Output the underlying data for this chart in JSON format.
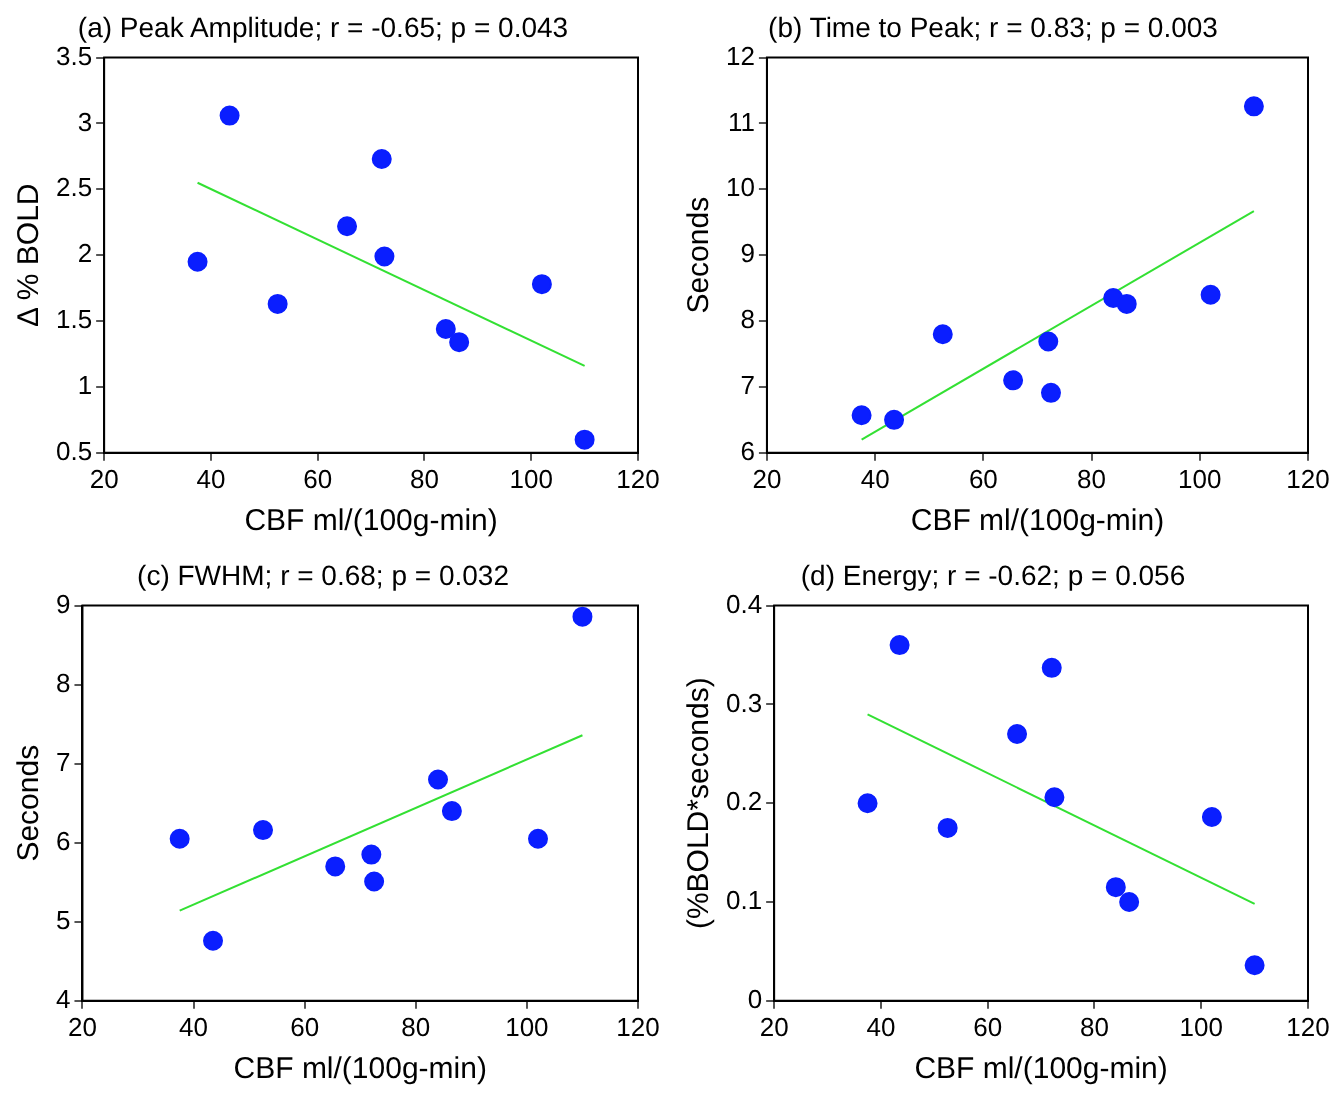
{
  "chart_data": [
    {
      "type": "scatter",
      "title": "(a) Peak Amplitude; r = -0.65; p = 0.043",
      "xlabel": "CBF ml/(100g-min)",
      "ylabel": "Δ % BOLD",
      "marker": "circle",
      "grid": false,
      "legend": false,
      "xlim": [
        20,
        120
      ],
      "xticks": [
        20,
        40,
        60,
        80,
        100,
        120
      ],
      "ylim": [
        0.5,
        3.5
      ],
      "yticks": [
        0.5,
        1,
        1.5,
        2,
        2.5,
        3,
        3.5
      ],
      "series": [
        {
          "type": "scatter",
          "color": "#0a1eff",
          "x": [
            37.5,
            43.5,
            52.5,
            65.5,
            72,
            72.5,
            84,
            86.5,
            102,
            110
          ],
          "values": [
            1.95,
            3.06,
            1.63,
            2.22,
            2.73,
            1.99,
            1.44,
            1.34,
            1.78,
            0.6
          ]
        },
        {
          "type": "line",
          "color": "#33e033",
          "marker": "none",
          "x": [
            37.5,
            110
          ],
          "values": [
            2.55,
            1.16
          ]
        }
      ]
    },
    {
      "type": "scatter",
      "title": "(b) Time to Peak; r = 0.83; p = 0.003",
      "xlabel": "CBF ml/(100g-min)",
      "ylabel": "Seconds",
      "marker": "circle",
      "grid": false,
      "legend": false,
      "xlim": [
        20,
        120
      ],
      "xticks": [
        20,
        40,
        60,
        80,
        100,
        120
      ],
      "ylim": [
        6,
        12
      ],
      "yticks": [
        6,
        7,
        8,
        9,
        10,
        11,
        12
      ],
      "series": [
        {
          "type": "scatter",
          "color": "#0a1eff",
          "x": [
            37.5,
            43.5,
            52.5,
            65.5,
            72,
            72.5,
            84,
            86.5,
            102,
            110
          ],
          "values": [
            6.57,
            6.5,
            7.8,
            7.1,
            7.69,
            6.91,
            8.35,
            8.26,
            8.4,
            11.26
          ]
        },
        {
          "type": "line",
          "color": "#33e033",
          "marker": "none",
          "x": [
            37.5,
            110
          ],
          "values": [
            6.2,
            9.67
          ]
        }
      ]
    },
    {
      "type": "scatter",
      "title": "(c) FWHM; r = 0.68; p = 0.032",
      "xlabel": "CBF ml/(100g-min)",
      "ylabel": "Seconds",
      "marker": "circle",
      "grid": false,
      "legend": false,
      "xlim": [
        20,
        120
      ],
      "xticks": [
        20,
        40,
        60,
        80,
        100,
        120
      ],
      "ylim": [
        4,
        9
      ],
      "yticks": [
        4,
        5,
        6,
        7,
        8,
        9
      ],
      "series": [
        {
          "type": "scatter",
          "color": "#0a1eff",
          "x": [
            37.5,
            43.5,
            52.5,
            65.5,
            72,
            72.5,
            84,
            86.5,
            102,
            110
          ],
          "values": [
            6.05,
            4.76,
            6.16,
            5.7,
            5.85,
            5.51,
            6.8,
            6.4,
            6.05,
            8.86
          ]
        },
        {
          "type": "line",
          "color": "#33e033",
          "marker": "none",
          "x": [
            37.5,
            110
          ],
          "values": [
            5.14,
            7.36
          ]
        }
      ]
    },
    {
      "type": "scatter",
      "title": "(d) Energy; r = -0.62; p = 0.056",
      "xlabel": "CBF ml/(100g-min)",
      "ylabel": "(%BOLD*seconds)",
      "marker": "circle",
      "grid": false,
      "legend": false,
      "xlim": [
        20,
        120
      ],
      "xticks": [
        20,
        40,
        60,
        80,
        100,
        120
      ],
      "ylim": [
        0,
        0.4
      ],
      "yticks": [
        0,
        0.1,
        0.2,
        0.3,
        0.4
      ],
      "series": [
        {
          "type": "scatter",
          "color": "#0a1eff",
          "x": [
            37.5,
            43.5,
            52.5,
            65.5,
            72,
            72.5,
            84,
            86.5,
            102,
            110
          ],
          "values": [
            0.2,
            0.36,
            0.175,
            0.27,
            0.337,
            0.206,
            0.115,
            0.1,
            0.186,
            0.036
          ]
        },
        {
          "type": "line",
          "color": "#33e033",
          "marker": "none",
          "x": [
            37.5,
            110
          ],
          "values": [
            0.29,
            0.098
          ]
        }
      ]
    }
  ]
}
